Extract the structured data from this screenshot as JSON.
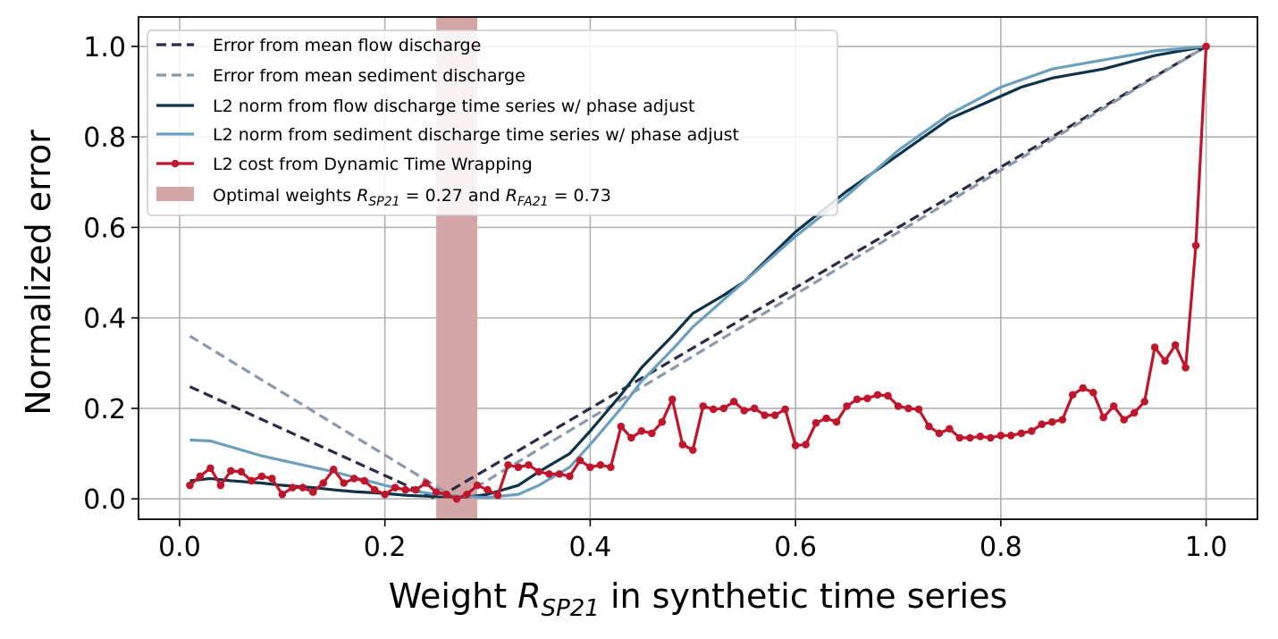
{
  "chart_data": {
    "type": "line",
    "xlabel_prefix": "Weight ",
    "xlabel_symbol": "R",
    "xlabel_sub": "SP21",
    "xlabel_suffix": " in synthetic time series",
    "ylabel": "Normalized error",
    "xlim": [
      -0.04,
      1.05
    ],
    "ylim": [
      -0.045,
      1.065
    ],
    "xticks": [
      0.0,
      0.2,
      0.4,
      0.6,
      0.8,
      1.0
    ],
    "xtick_labels": [
      "0.0",
      "0.2",
      "0.4",
      "0.6",
      "0.8",
      "1.0"
    ],
    "yticks": [
      0.0,
      0.2,
      0.4,
      0.6,
      0.8,
      1.0
    ],
    "ytick_labels": [
      "0.0",
      "0.2",
      "0.4",
      "0.6",
      "0.8",
      "1.0"
    ],
    "grid": true,
    "legend_position": "upper-left",
    "optimal_band": {
      "x_range": [
        0.25,
        0.29
      ],
      "color": "#d4a5a5",
      "label_prefix": "Optimal weights ",
      "label_r1_sub": "SP21",
      "label_r1_value": " = 0.27 and ",
      "label_r2_sub": "FA21",
      "label_r2_value": " = 0.73"
    },
    "series": [
      {
        "name": "Error from mean flow discharge",
        "style": "dashed",
        "color": "#2b2b45",
        "x": [
          0.01,
          0.25,
          1.0
        ],
        "y": [
          0.248,
          0.0,
          1.0
        ]
      },
      {
        "name": "Error from mean sediment discharge",
        "style": "dashed",
        "color": "#8c98ab",
        "x": [
          0.01,
          0.27,
          1.0
        ],
        "y": [
          0.36,
          0.0,
          1.0
        ]
      },
      {
        "name": "L2 norm from flow discharge time series w/ phase adjust",
        "style": "solid",
        "color": "#0d3349",
        "x": [
          0.01,
          0.03,
          0.05,
          0.08,
          0.1,
          0.13,
          0.15,
          0.17,
          0.2,
          0.22,
          0.25,
          0.28,
          0.3,
          0.33,
          0.35,
          0.38,
          0.4,
          0.43,
          0.45,
          0.48,
          0.5,
          0.53,
          0.55,
          0.6,
          0.65,
          0.7,
          0.75,
          0.8,
          0.82,
          0.85,
          0.9,
          0.95,
          1.0
        ],
        "y": [
          0.04,
          0.045,
          0.04,
          0.035,
          0.03,
          0.025,
          0.02,
          0.016,
          0.012,
          0.008,
          0.005,
          0.004,
          0.01,
          0.03,
          0.06,
          0.1,
          0.15,
          0.23,
          0.29,
          0.36,
          0.41,
          0.45,
          0.48,
          0.59,
          0.68,
          0.76,
          0.84,
          0.89,
          0.91,
          0.93,
          0.95,
          0.98,
          1.0
        ]
      },
      {
        "name": "L2 norm from sediment discharge time series w/ phase adjust",
        "style": "solid",
        "color": "#6b9fc0",
        "x": [
          0.01,
          0.03,
          0.05,
          0.08,
          0.1,
          0.13,
          0.15,
          0.2,
          0.22,
          0.25,
          0.28,
          0.3,
          0.33,
          0.35,
          0.38,
          0.4,
          0.43,
          0.45,
          0.48,
          0.5,
          0.55,
          0.6,
          0.65,
          0.7,
          0.75,
          0.8,
          0.85,
          0.9,
          0.95,
          1.0
        ],
        "y": [
          0.13,
          0.128,
          0.115,
          0.095,
          0.085,
          0.07,
          0.06,
          0.03,
          0.02,
          0.01,
          0.005,
          0.003,
          0.01,
          0.03,
          0.07,
          0.12,
          0.2,
          0.26,
          0.33,
          0.38,
          0.48,
          0.58,
          0.67,
          0.77,
          0.85,
          0.91,
          0.95,
          0.97,
          0.99,
          1.0
        ]
      },
      {
        "name": "L2 cost from Dynamic Time Wrapping",
        "style": "solid-markers",
        "color": "#c0162b",
        "x": [
          0.01,
          0.02,
          0.03,
          0.04,
          0.05,
          0.06,
          0.07,
          0.08,
          0.09,
          0.1,
          0.11,
          0.12,
          0.13,
          0.14,
          0.15,
          0.16,
          0.17,
          0.18,
          0.19,
          0.2,
          0.21,
          0.22,
          0.23,
          0.24,
          0.25,
          0.26,
          0.27,
          0.28,
          0.29,
          0.3,
          0.31,
          0.32,
          0.33,
          0.34,
          0.35,
          0.36,
          0.37,
          0.38,
          0.39,
          0.4,
          0.41,
          0.42,
          0.43,
          0.44,
          0.45,
          0.46,
          0.47,
          0.48,
          0.49,
          0.5,
          0.51,
          0.52,
          0.53,
          0.54,
          0.55,
          0.56,
          0.57,
          0.58,
          0.59,
          0.6,
          0.61,
          0.62,
          0.63,
          0.64,
          0.65,
          0.66,
          0.67,
          0.68,
          0.69,
          0.7,
          0.71,
          0.72,
          0.73,
          0.74,
          0.75,
          0.76,
          0.77,
          0.78,
          0.79,
          0.8,
          0.81,
          0.82,
          0.83,
          0.84,
          0.85,
          0.86,
          0.87,
          0.88,
          0.89,
          0.9,
          0.91,
          0.92,
          0.93,
          0.94,
          0.95,
          0.96,
          0.97,
          0.98,
          0.99,
          1.0
        ],
        "y": [
          0.03,
          0.05,
          0.068,
          0.03,
          0.062,
          0.06,
          0.04,
          0.05,
          0.045,
          0.01,
          0.025,
          0.025,
          0.015,
          0.035,
          0.065,
          0.035,
          0.045,
          0.04,
          0.02,
          0.01,
          0.025,
          0.02,
          0.02,
          0.035,
          0.015,
          0.01,
          0.0,
          0.01,
          0.03,
          0.02,
          0.008,
          0.075,
          0.07,
          0.075,
          0.06,
          0.055,
          0.055,
          0.05,
          0.085,
          0.07,
          0.075,
          0.07,
          0.16,
          0.135,
          0.15,
          0.145,
          0.17,
          0.22,
          0.12,
          0.108,
          0.205,
          0.198,
          0.2,
          0.215,
          0.195,
          0.2,
          0.185,
          0.185,
          0.198,
          0.118,
          0.12,
          0.168,
          0.178,
          0.17,
          0.205,
          0.22,
          0.222,
          0.23,
          0.228,
          0.205,
          0.2,
          0.198,
          0.16,
          0.145,
          0.155,
          0.135,
          0.135,
          0.138,
          0.135,
          0.14,
          0.14,
          0.145,
          0.15,
          0.165,
          0.17,
          0.175,
          0.23,
          0.245,
          0.235,
          0.18,
          0.205,
          0.175,
          0.19,
          0.215,
          0.335,
          0.305,
          0.34,
          0.29,
          0.56,
          1.0
        ]
      }
    ]
  }
}
